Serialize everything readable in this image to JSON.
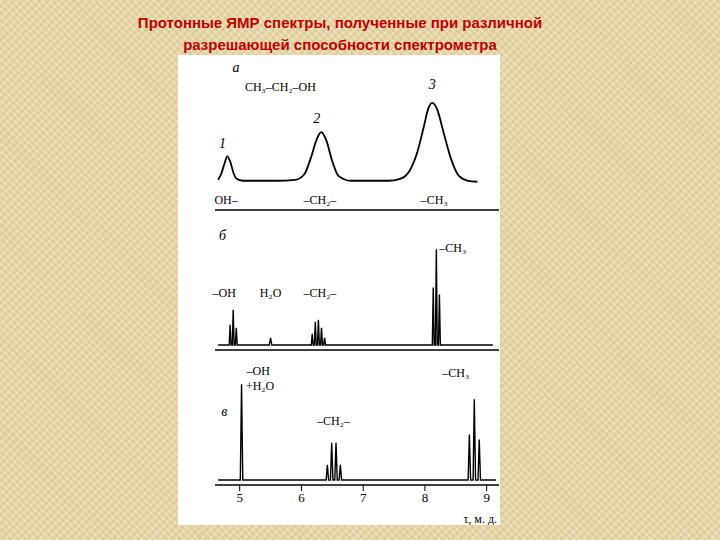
{
  "title": "Протонные ЯМР спектры, полученные при различной\nразрешающей способности спектрометра",
  "chart_data": [
    {
      "type": "line",
      "line_style": "smooth",
      "color": "#000000",
      "tick_labels": false,
      "xlim": [
        4.6,
        9.2
      ],
      "ylim": [
        -0.25,
        1.3
      ],
      "x": [
        4.65,
        4.7,
        4.75,
        4.8,
        4.85,
        4.9,
        4.95,
        5.05,
        5.3,
        5.6,
        5.9,
        6.05,
        6.15,
        6.25,
        6.32,
        6.4,
        6.5,
        6.6,
        6.8,
        7.1,
        7.4,
        7.6,
        7.75,
        7.88,
        7.98,
        8.06,
        8.12,
        8.2,
        8.3,
        8.42,
        8.55,
        8.7,
        8.85
      ],
      "values": [
        0.06,
        0.12,
        0.22,
        0.3,
        0.24,
        0.13,
        0.07,
        0.05,
        0.05,
        0.05,
        0.06,
        0.12,
        0.28,
        0.48,
        0.55,
        0.47,
        0.25,
        0.1,
        0.05,
        0.05,
        0.05,
        0.07,
        0.15,
        0.35,
        0.6,
        0.8,
        0.85,
        0.78,
        0.55,
        0.28,
        0.1,
        0.05,
        0.04
      ],
      "annotations": [
        {
          "text": "а",
          "x": 4.94,
          "y": 1.2
        },
        {
          "text": "CH₃–CH₂–OH",
          "x": 5.66,
          "y": 1.0
        },
        {
          "text": "1",
          "x": 4.72,
          "y": 0.42
        },
        {
          "text": "2",
          "x": 6.25,
          "y": 0.68
        },
        {
          "text": "3",
          "x": 8.12,
          "y": 1.02
        },
        {
          "text": "OH–",
          "x": 4.78,
          "y": -0.16
        },
        {
          "text": "–CH₂–",
          "x": 6.3,
          "y": -0.16
        },
        {
          "text": "–CH₃",
          "x": 8.15,
          "y": -0.16
        }
      ]
    },
    {
      "type": "line",
      "line_style": "solid",
      "color": "#000000",
      "tick_labels": false,
      "xlim": [
        4.6,
        9.2
      ],
      "ylim": [
        0,
        1.3
      ],
      "x": [
        4.65,
        4.83,
        4.845,
        4.86,
        4.88,
        4.895,
        4.91,
        4.93,
        4.945,
        4.96,
        5.48,
        5.5,
        5.52,
        6.16,
        6.175,
        6.19,
        6.21,
        6.225,
        6.24,
        6.26,
        6.275,
        6.29,
        6.31,
        6.325,
        6.34,
        6.36,
        6.375,
        6.39,
        8.12,
        8.135,
        8.15,
        8.17,
        8.185,
        8.2,
        8.22,
        8.235,
        8.25,
        9.1
      ],
      "values": [
        0.05,
        0.05,
        0.25,
        0.05,
        0.05,
        0.4,
        0.05,
        0.05,
        0.22,
        0.05,
        0.05,
        0.12,
        0.05,
        0.05,
        0.16,
        0.05,
        0.05,
        0.28,
        0.05,
        0.05,
        0.3,
        0.05,
        0.05,
        0.22,
        0.05,
        0.05,
        0.12,
        0.05,
        0.05,
        0.62,
        0.05,
        0.05,
        1.0,
        0.05,
        0.05,
        0.55,
        0.05,
        0.05
      ],
      "annotations": [
        {
          "text": "б",
          "x": 4.72,
          "y": 1.12
        },
        {
          "text": "–OH",
          "x": 4.75,
          "y": 0.55
        },
        {
          "text": "H₂O",
          "x": 5.5,
          "y": 0.55
        },
        {
          "text": "–CH₂–",
          "x": 6.3,
          "y": 0.55
        },
        {
          "text": "–CH₃",
          "x": 8.45,
          "y": 1.0
        }
      ]
    },
    {
      "type": "line",
      "line_style": "solid",
      "color": "#000000",
      "tick_labels": "x",
      "xlim": [
        4.6,
        9.2
      ],
      "xticks": [
        5,
        6,
        7,
        8,
        9
      ],
      "x_label": "τ, м. д.",
      "ylim": [
        0,
        1.25
      ],
      "x": [
        4.65,
        5.01,
        5.03,
        5.05,
        6.4,
        6.42,
        6.44,
        6.47,
        6.49,
        6.51,
        6.54,
        6.56,
        6.58,
        6.61,
        6.63,
        6.65,
        8.7,
        8.72,
        8.74,
        8.78,
        8.8,
        8.82,
        8.86,
        8.88,
        8.9,
        9.15
      ],
      "values": [
        0.05,
        0.05,
        1.0,
        0.05,
        0.05,
        0.2,
        0.05,
        0.05,
        0.42,
        0.05,
        0.05,
        0.42,
        0.05,
        0.05,
        0.2,
        0.05,
        0.05,
        0.5,
        0.05,
        0.05,
        0.85,
        0.05,
        0.05,
        0.45,
        0.05,
        0.05
      ],
      "annotations": [
        {
          "text": "в",
          "x": 4.75,
          "y": 0.72
        },
        {
          "text": "–OH",
          "x": 5.3,
          "y": 1.12
        },
        {
          "text": "+H₂O",
          "x": 5.33,
          "y": 0.97
        },
        {
          "text": "–CH₂–",
          "x": 6.52,
          "y": 0.62
        },
        {
          "text": "–CH₃",
          "x": 8.5,
          "y": 1.1
        }
      ]
    }
  ]
}
